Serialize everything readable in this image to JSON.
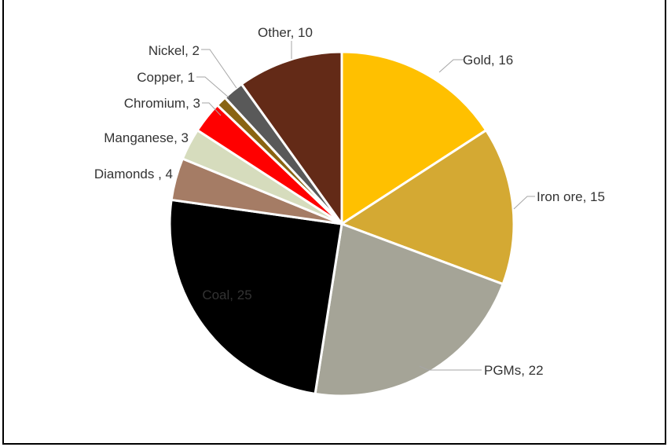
{
  "chart_data": {
    "type": "pie",
    "start_angle_deg": 0,
    "direction": "clockwise",
    "slices": [
      {
        "label": "Gold, 16",
        "name": "Gold",
        "value": 16,
        "color": "#FFC000",
        "label_color": "#333333"
      },
      {
        "label": "Iron ore, 15",
        "name": "Iron ore",
        "value": 15,
        "color": "#D4A933",
        "label_color": "#333333"
      },
      {
        "label": "PGMs, 22",
        "name": "PGMs",
        "value": 22,
        "color": "#A5A497",
        "label_color": "#333333"
      },
      {
        "label": "Coal, 25",
        "name": "Coal",
        "value": 25,
        "color": "#000000",
        "label_color": "#FFFFFF"
      },
      {
        "label": "Diamonds , 4",
        "name": "Diamonds",
        "value": 4,
        "color": "#A57C65",
        "label_color": "#333333"
      },
      {
        "label": "Manganese, 3",
        "name": "Manganese",
        "value": 3,
        "color": "#D6DCBD",
        "label_color": "#333333"
      },
      {
        "label": "Chromium, 3",
        "name": "Chromium",
        "value": 3,
        "color": "#FF0000",
        "label_color": "#333333"
      },
      {
        "label": "Copper, 1",
        "name": "Copper",
        "value": 1,
        "color": "#8A6412",
        "label_color": "#333333"
      },
      {
        "label": "Nickel, 2",
        "name": "Nickel",
        "value": 2,
        "color": "#595959",
        "label_color": "#333333"
      },
      {
        "label": "Other, 10",
        "name": "Other",
        "value": 10,
        "color": "#632A17",
        "label_color": "#333333"
      }
    ]
  }
}
